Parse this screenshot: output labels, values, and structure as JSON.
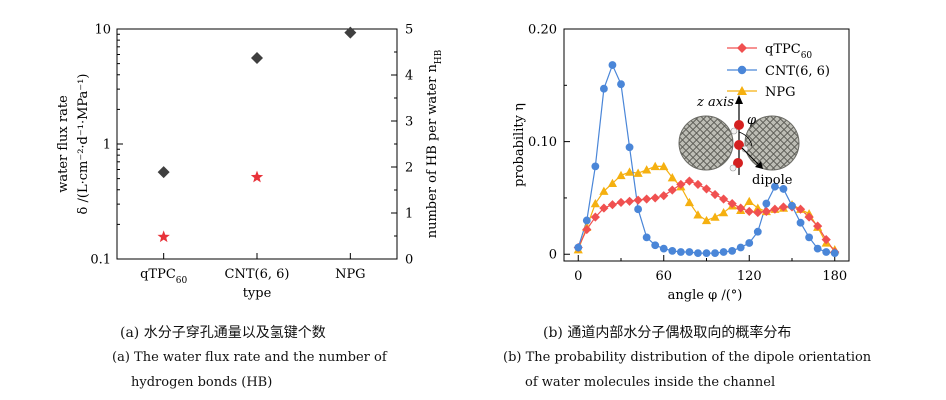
{
  "chart_data": [
    {
      "type": "scatter",
      "xlabel": "type",
      "categories": [
        "qTPC",
        "CNT(6, 6)",
        "NPG"
      ],
      "category_subscripts": [
        "60",
        "",
        ""
      ],
      "ylabel_line1": "water flux rate",
      "ylabel_line2": "δ /(L·cm⁻²·d⁻¹·MPa⁻¹)",
      "y_scale": "log",
      "ylim": [
        0.1,
        10
      ],
      "yticks": [
        "0.1",
        "1",
        "10"
      ],
      "y2label": "number of HB per water n",
      "y2label_sub": "HB",
      "y2lim": [
        0,
        5
      ],
      "y2ticks": [
        "0",
        "1",
        "2",
        "3",
        "4",
        "5"
      ],
      "series": [
        {
          "marker": "diamond",
          "color": "#3f3f3f",
          "axis": "left",
          "values": [
            0.57,
            5.6,
            9.3
          ]
        },
        {
          "marker": "star",
          "color": "#e8333a",
          "axis": "right",
          "values": [
            0.48,
            1.78,
            null
          ]
        }
      ]
    },
    {
      "type": "line",
      "xlabel": "angle φ /(°)",
      "ylabel": "probability η",
      "xlim": [
        -10,
        190
      ],
      "ylim": [
        -0.006,
        0.2
      ],
      "xticks": [
        "0",
        "60",
        "120",
        "180"
      ],
      "yticks": [
        "0",
        "0.10",
        "0.20"
      ],
      "legend_position": "top-right",
      "series": [
        {
          "name": "qTPC",
          "name_sub": "60",
          "color": "#f05050",
          "marker": "diamond",
          "x": [
            0,
            6,
            12,
            18,
            24,
            30,
            36,
            42,
            48,
            54,
            60,
            66,
            72,
            78,
            84,
            90,
            96,
            102,
            108,
            114,
            120,
            126,
            132,
            138,
            144,
            150,
            156,
            162,
            168,
            174,
            180
          ],
          "y": [
            0.006,
            0.022,
            0.033,
            0.041,
            0.044,
            0.046,
            0.047,
            0.048,
            0.049,
            0.05,
            0.052,
            0.057,
            0.062,
            0.065,
            0.062,
            0.058,
            0.053,
            0.049,
            0.045,
            0.041,
            0.038,
            0.037,
            0.038,
            0.04,
            0.042,
            0.042,
            0.04,
            0.033,
            0.025,
            0.013,
            0.002
          ]
        },
        {
          "name": "CNT(6, 6)",
          "name_sub": "",
          "color": "#4a86d8",
          "marker": "circle",
          "x": [
            0,
            6,
            12,
            18,
            24,
            30,
            36,
            42,
            48,
            54,
            60,
            66,
            72,
            78,
            84,
            90,
            96,
            102,
            108,
            114,
            120,
            126,
            132,
            138,
            144,
            150,
            156,
            162,
            168,
            174,
            180
          ],
          "y": [
            0.006,
            0.03,
            0.078,
            0.147,
            0.168,
            0.151,
            0.095,
            0.04,
            0.015,
            0.008,
            0.005,
            0.003,
            0.002,
            0.002,
            0.001,
            0.001,
            0.001,
            0.002,
            0.003,
            0.006,
            0.01,
            0.02,
            0.045,
            0.06,
            0.058,
            0.043,
            0.028,
            0.015,
            0.005,
            0.002,
            0.001
          ]
        },
        {
          "name": "NPG",
          "name_sub": "",
          "color": "#f5b010",
          "marker": "triangle",
          "x": [
            0,
            6,
            12,
            18,
            24,
            30,
            36,
            42,
            48,
            54,
            60,
            66,
            72,
            78,
            84,
            90,
            96,
            102,
            108,
            114,
            120,
            126,
            132,
            138,
            144,
            150,
            156,
            162,
            168,
            174,
            180
          ],
          "y": [
            0.004,
            0.024,
            0.045,
            0.056,
            0.063,
            0.07,
            0.073,
            0.072,
            0.075,
            0.078,
            0.078,
            0.068,
            0.06,
            0.046,
            0.035,
            0.03,
            0.033,
            0.037,
            0.043,
            0.039,
            0.047,
            0.041,
            0.038,
            0.04,
            0.041,
            0.044,
            0.04,
            0.036,
            0.024,
            0.01,
            0.004
          ]
        }
      ],
      "annotations": {
        "z_axis": "z axis",
        "angle": "φ",
        "dipole": "dipole"
      }
    }
  ],
  "captions": {
    "a_cn": "(a) 水分子穿孔通量以及氢键个数",
    "a_en_line1": "(a) The water flux rate and the number of",
    "a_en_line2": "hydrogen bonds (HB)",
    "b_cn": "(b) 通道内部水分子偶极取向的概率分布",
    "b_en_line1": "(b) The probability distribution of the dipole orientation",
    "b_en_line2": "of water molecules inside the channel"
  }
}
